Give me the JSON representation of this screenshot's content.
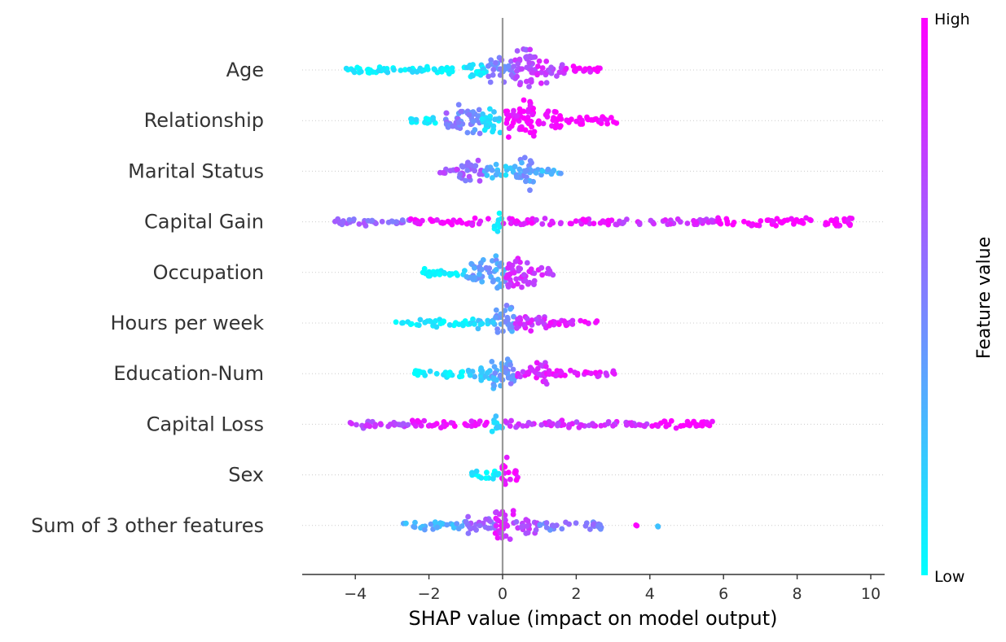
{
  "chart_data": {
    "type": "scatter",
    "subtype": "shap-beeswarm",
    "title": "",
    "xlabel": "SHAP value (impact on model output)",
    "xlim": [
      -5.4,
      10.4
    ],
    "xticks": [
      {
        "value": -4,
        "label": "−4"
      },
      {
        "value": -2,
        "label": "−2"
      },
      {
        "value": 0,
        "label": "0"
      },
      {
        "value": 2,
        "label": "2"
      },
      {
        "value": 4,
        "label": "4"
      },
      {
        "value": 6,
        "label": "6"
      },
      {
        "value": 8,
        "label": "8"
      },
      {
        "value": 10,
        "label": "10"
      }
    ],
    "colorbar": {
      "label": "Feature value",
      "high_label": "High",
      "low_label": "Low",
      "low_color": "#00ffff",
      "high_color": "#ff00ff"
    },
    "zero_line_color": "#999999",
    "grid": "dotted rows",
    "features": [
      {
        "name": "Age",
        "segments": [
          [
            -4.4,
            -2.6,
            0.12,
            0.05
          ],
          [
            -2.6,
            -1.0,
            0.12,
            0.06
          ],
          [
            -1.0,
            -0.4,
            0.35,
            0.1
          ],
          [
            -0.4,
            0.3,
            0.6,
            0.5
          ],
          [
            0.3,
            0.9,
            1.0,
            0.7
          ],
          [
            0.9,
            1.2,
            0.6,
            0.8
          ],
          [
            1.2,
            1.7,
            0.25,
            0.75
          ],
          [
            1.7,
            2.7,
            0.1,
            0.95
          ]
        ]
      },
      {
        "name": "Relationship",
        "segments": [
          [
            -2.5,
            -1.6,
            0.12,
            0.1
          ],
          [
            -1.6,
            -1.2,
            0.5,
            0.55
          ],
          [
            -1.2,
            -0.6,
            0.8,
            0.45
          ],
          [
            -0.6,
            -0.05,
            0.6,
            0.15
          ],
          [
            0.05,
            0.5,
            0.8,
            0.95
          ],
          [
            0.5,
            0.9,
            1.0,
            1.0
          ],
          [
            0.9,
            1.6,
            0.45,
            1.0
          ],
          [
            1.6,
            3.1,
            0.15,
            1.0
          ]
        ]
      },
      {
        "name": "Marital Status",
        "segments": [
          [
            -1.8,
            -1.2,
            0.15,
            0.7
          ],
          [
            -1.2,
            -0.5,
            0.5,
            0.6
          ],
          [
            -0.5,
            0.0,
            0.3,
            0.3
          ],
          [
            0.0,
            0.3,
            0.25,
            0.2
          ],
          [
            0.3,
            0.6,
            0.6,
            0.4
          ],
          [
            0.6,
            0.85,
            1.0,
            0.4
          ],
          [
            0.85,
            1.6,
            0.15,
            0.3
          ]
        ]
      },
      {
        "name": "Capital Gain",
        "segments": [
          [
            -4.7,
            -2.5,
            0.12,
            0.6
          ],
          [
            -2.5,
            -0.3,
            0.1,
            0.95
          ],
          [
            -0.25,
            0.0,
            0.45,
            0.02
          ],
          [
            0.0,
            3.0,
            0.1,
            0.9
          ],
          [
            3.0,
            5.8,
            0.1,
            0.8
          ],
          [
            5.8,
            9.6,
            0.15,
            1.0
          ]
        ]
      },
      {
        "name": "Occupation",
        "segments": [
          [
            -2.2,
            -1.0,
            0.15,
            0.05
          ],
          [
            -1.0,
            -0.2,
            0.6,
            0.4
          ],
          [
            -0.2,
            0.1,
            0.85,
            0.35
          ],
          [
            0.1,
            0.9,
            0.8,
            0.8
          ],
          [
            0.9,
            1.4,
            0.2,
            0.8
          ]
        ]
      },
      {
        "name": "Hours per week",
        "segments": [
          [
            -2.9,
            -0.8,
            0.12,
            0.05
          ],
          [
            -0.8,
            -0.2,
            0.2,
            0.2
          ],
          [
            -0.2,
            0.3,
            0.85,
            0.4
          ],
          [
            0.3,
            1.2,
            0.35,
            0.8
          ],
          [
            1.2,
            2.6,
            0.12,
            0.9
          ]
        ]
      },
      {
        "name": "Education-Num",
        "segments": [
          [
            -2.4,
            -1.0,
            0.12,
            0.05
          ],
          [
            -1.0,
            -0.3,
            0.3,
            0.2
          ],
          [
            -0.3,
            0.05,
            0.8,
            0.35
          ],
          [
            0.05,
            0.4,
            0.7,
            0.45
          ],
          [
            0.4,
            1.2,
            0.55,
            0.85
          ],
          [
            1.2,
            3.1,
            0.12,
            0.9
          ]
        ]
      },
      {
        "name": "Capital Loss",
        "segments": [
          [
            -4.2,
            -2.5,
            0.12,
            0.75
          ],
          [
            -2.5,
            -0.3,
            0.1,
            0.95
          ],
          [
            -0.3,
            0.0,
            0.4,
            0.15
          ],
          [
            0.0,
            4.0,
            0.1,
            0.8
          ],
          [
            4.0,
            5.8,
            0.15,
            1.0
          ]
        ]
      },
      {
        "name": "Sex",
        "segments": [
          [
            -0.85,
            -0.05,
            0.25,
            0.05
          ],
          [
            -0.05,
            0.15,
            0.85,
            0.98
          ],
          [
            0.15,
            0.5,
            0.25,
            0.98
          ]
        ]
      },
      {
        "name": "Sum of 3 other features",
        "segments": [
          [
            -2.7,
            -1.0,
            0.15,
            0.3
          ],
          [
            -1.0,
            -0.2,
            0.35,
            0.6
          ],
          [
            -0.2,
            0.3,
            0.9,
            0.85
          ],
          [
            0.3,
            1.0,
            0.4,
            0.7
          ],
          [
            1.0,
            2.8,
            0.15,
            0.5
          ],
          [
            3.6,
            3.7,
            0.05,
            0.95
          ],
          [
            4.2,
            4.3,
            0.05,
            0.3
          ]
        ]
      }
    ]
  }
}
